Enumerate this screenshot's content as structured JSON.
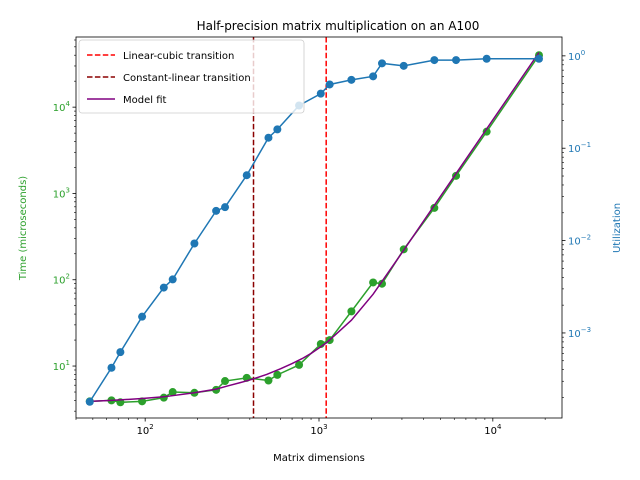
{
  "chart_data": {
    "type": "line",
    "title": "Half-precision matrix multiplication on an A100",
    "xlabel": "Matrix dimensions",
    "ylabel_left": "Time (microseconds)",
    "ylabel_right": "Utilization",
    "x_scale": "log",
    "xlim": [
      40,
      25000
    ],
    "y_left_scale": "log",
    "y_left_lim": [
      2.5,
      65000
    ],
    "y_right_scale": "log",
    "y_right_lim": [
      0.00012,
      1.6
    ],
    "x_ticks": [
      {
        "value": 100,
        "label": "10"
      },
      {
        "value": 1000,
        "label": "10"
      },
      {
        "value": 10000,
        "label": "10"
      }
    ],
    "x_tick_exponents": [
      "2",
      "3",
      "4"
    ],
    "y_left_ticks": [
      {
        "value": 10,
        "exp": "1"
      },
      {
        "value": 100,
        "exp": "2"
      },
      {
        "value": 1000,
        "exp": "3"
      },
      {
        "value": 10000,
        "exp": "4"
      }
    ],
    "y_right_ticks": [
      {
        "value": 0.001,
        "exp": "−3"
      },
      {
        "value": 0.01,
        "exp": "−2"
      },
      {
        "value": 0.1,
        "exp": "−1"
      },
      {
        "value": 1,
        "exp": "0"
      }
    ],
    "tick_base": "10",
    "vlines": [
      {
        "name": "Linear-cubic transition",
        "x": 1100,
        "color": "#ff0000",
        "style": "dashed"
      },
      {
        "name": "Constant-linear transition",
        "x": 420,
        "color": "#8b0000",
        "style": "dashed"
      }
    ],
    "series": [
      {
        "name": "Time",
        "axis": "left",
        "color": "#2ca02c",
        "x": [
          48,
          64,
          72,
          96,
          128,
          144,
          192,
          256,
          288,
          384,
          512,
          576,
          768,
          1024,
          1152,
          1536,
          2048,
          2304,
          3072,
          4608,
          6144,
          9216,
          18432
        ],
        "y": [
          3.9,
          4.0,
          3.8,
          3.9,
          4.3,
          5.0,
          4.9,
          5.3,
          6.7,
          7.3,
          6.8,
          7.9,
          10.3,
          18.0,
          20.0,
          43.0,
          93.0,
          90.0,
          225.0,
          680.0,
          1600.0,
          5200.0,
          40000.0
        ]
      },
      {
        "name": "Utilization",
        "axis": "right",
        "color": "#1f77b4",
        "x": [
          48,
          64,
          72,
          96,
          128,
          144,
          192,
          256,
          288,
          384,
          512,
          576,
          768,
          1024,
          1152,
          1536,
          2048,
          2304,
          3072,
          4608,
          6144,
          9216,
          18432
        ],
        "y": [
          0.00018,
          0.00042,
          0.00062,
          0.0015,
          0.0031,
          0.0038,
          0.0093,
          0.021,
          0.023,
          0.051,
          0.13,
          0.16,
          0.29,
          0.39,
          0.49,
          0.55,
          0.6,
          0.83,
          0.78,
          0.9,
          0.9,
          0.93,
          0.93
        ]
      },
      {
        "name": "Model fit",
        "axis": "left",
        "color": "#800080",
        "x": [
          48,
          64,
          96,
          128,
          192,
          256,
          300,
          350,
          400,
          420,
          500,
          600,
          700,
          800,
          900,
          1000,
          1100,
          1300,
          1536,
          2048,
          3072,
          4608,
          6144,
          9216,
          18432
        ],
        "y": [
          3.9,
          4.0,
          4.2,
          4.4,
          4.9,
          5.4,
          5.9,
          6.4,
          6.9,
          7.1,
          8.0,
          9.3,
          10.7,
          12.2,
          14.0,
          16.2,
          18.5,
          25.0,
          34.0,
          68.0,
          220.0,
          730.0,
          1700.0,
          5600.0,
          43000.0
        ]
      }
    ],
    "legend": {
      "placement": "top-left",
      "entries": [
        "Linear-cubic transition",
        "Constant-linear transition",
        "Model fit"
      ]
    }
  }
}
